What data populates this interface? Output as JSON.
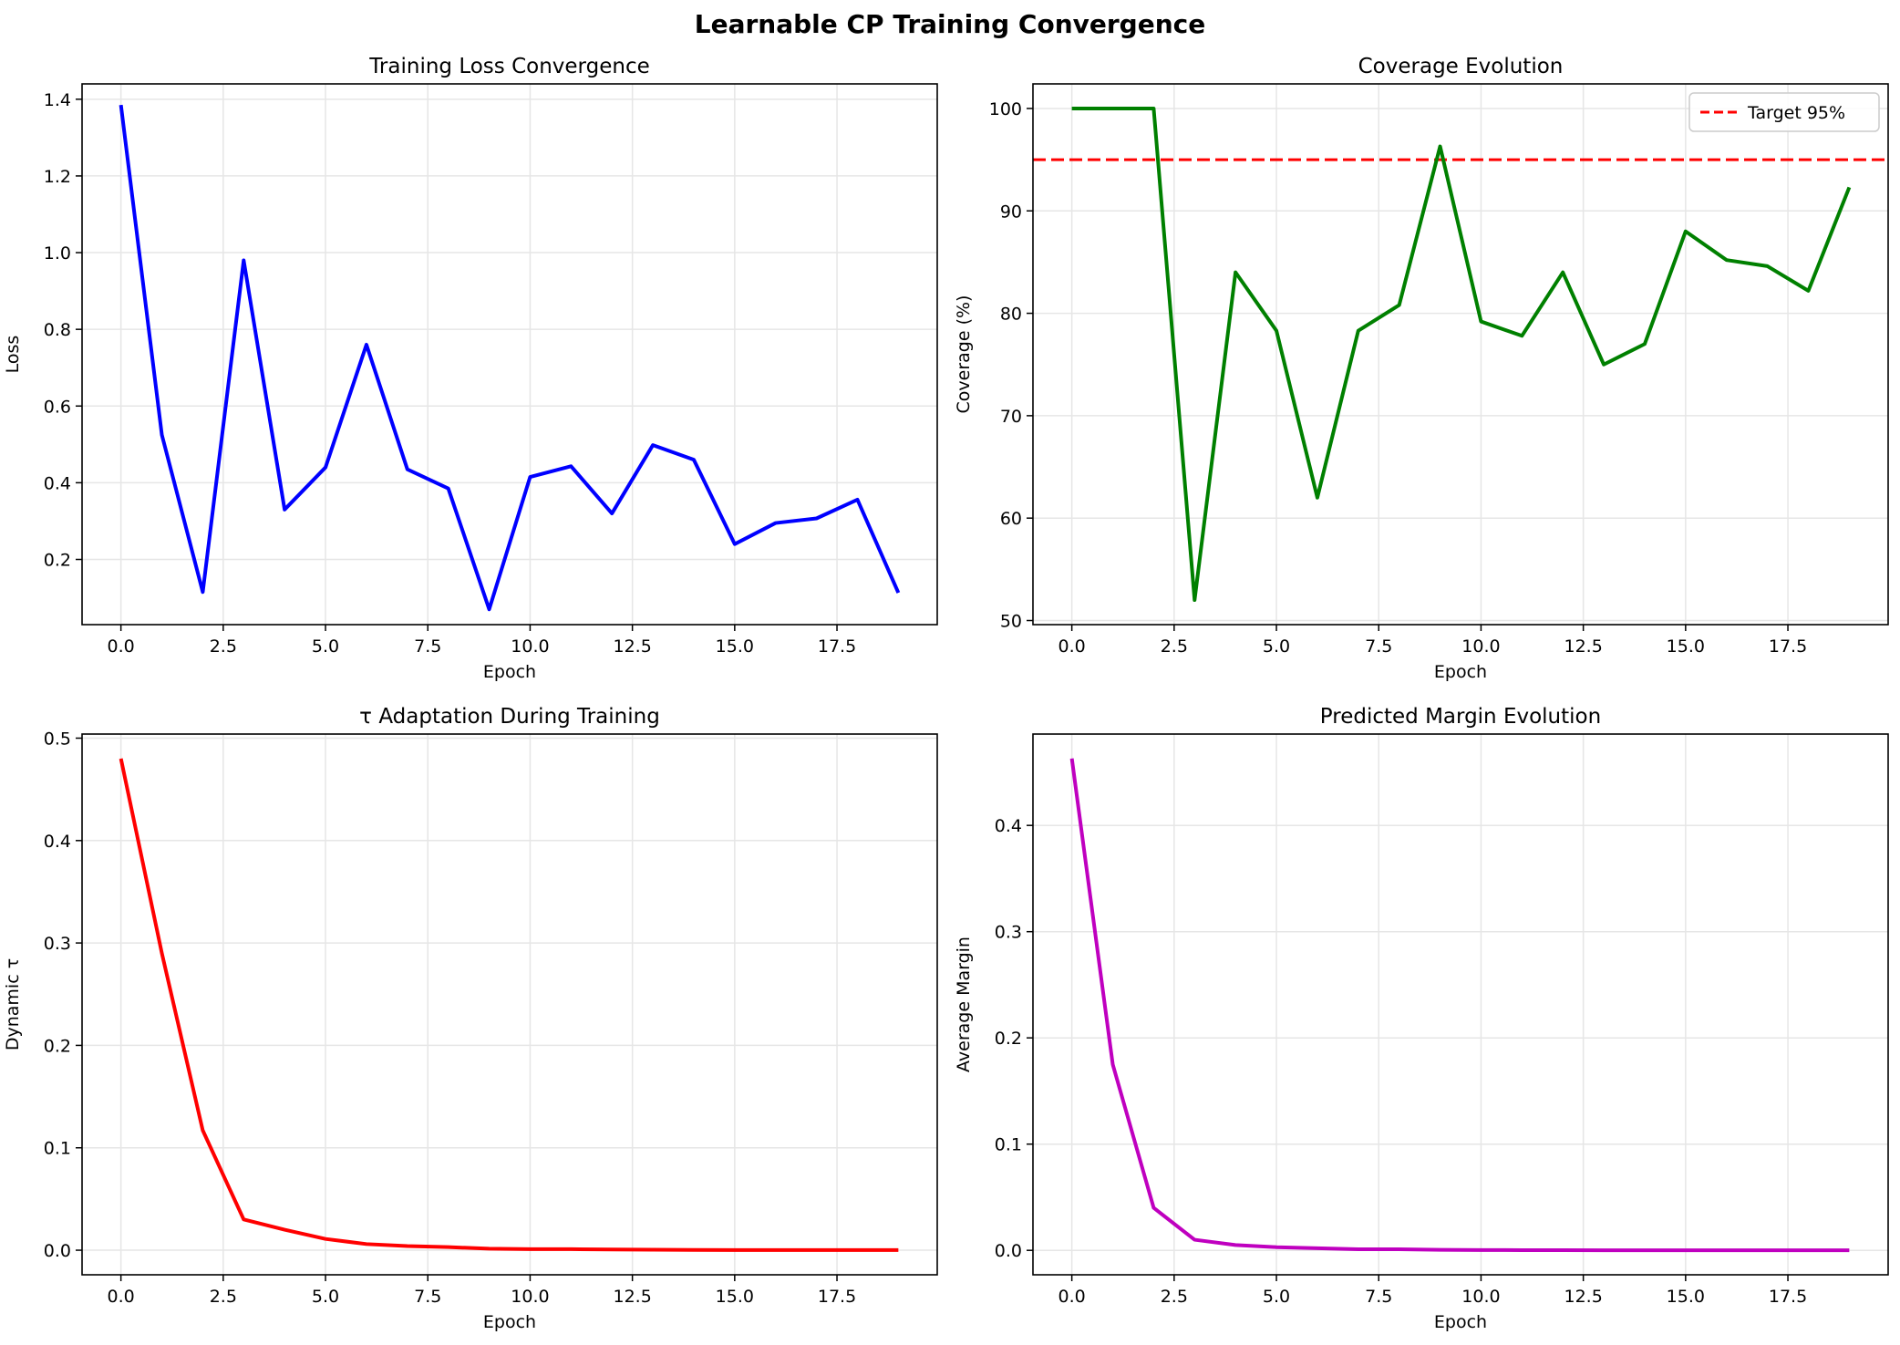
{
  "figure": {
    "suptitle": "Learnable CP Training Convergence"
  },
  "chart_data": [
    {
      "type": "line",
      "title": "Training Loss Convergence",
      "xlabel": "Epoch",
      "ylabel": "Loss",
      "xlim": [
        -0.95,
        19.95
      ],
      "ylim": [
        0.03,
        1.44
      ],
      "xticks": [
        0,
        2.5,
        5,
        7.5,
        10,
        12.5,
        15,
        17.5
      ],
      "xtick_labels": [
        "0.0",
        "2.5",
        "5.0",
        "7.5",
        "10.0",
        "12.5",
        "15.0",
        "17.5"
      ],
      "yticks": [
        0.2,
        0.4,
        0.6,
        0.8,
        1.0,
        1.2,
        1.4
      ],
      "ytick_labels": [
        "0.2",
        "0.4",
        "0.6",
        "0.8",
        "1.0",
        "1.2",
        "1.4"
      ],
      "grid": true,
      "series": [
        {
          "color": "#0000ff",
          "x": [
            0,
            1,
            2,
            3,
            4,
            5,
            6,
            7,
            8,
            9,
            10,
            11,
            12,
            13,
            14,
            15,
            16,
            17,
            18,
            19
          ],
          "y": [
            1.385,
            0.525,
            0.115,
            0.98,
            0.33,
            0.44,
            0.76,
            0.435,
            0.385,
            0.07,
            0.415,
            0.443,
            0.32,
            0.498,
            0.46,
            0.24,
            0.295,
            0.307,
            0.356,
            0.113
          ]
        }
      ]
    },
    {
      "type": "line",
      "title": "Coverage Evolution",
      "xlabel": "Epoch",
      "ylabel": "Coverage (%)",
      "xlim": [
        -0.95,
        19.95
      ],
      "ylim": [
        49.6,
        102.4
      ],
      "xticks": [
        0,
        2.5,
        5,
        7.5,
        10,
        12.5,
        15,
        17.5
      ],
      "xtick_labels": [
        "0.0",
        "2.5",
        "5.0",
        "7.5",
        "10.0",
        "12.5",
        "15.0",
        "17.5"
      ],
      "yticks": [
        50,
        60,
        70,
        80,
        90,
        100
      ],
      "ytick_labels": [
        "50",
        "60",
        "70",
        "80",
        "90",
        "100"
      ],
      "grid": true,
      "legend_position": "upper right",
      "series": [
        {
          "color": "#008000",
          "x": [
            0,
            1,
            2,
            3,
            4,
            5,
            6,
            7,
            8,
            9,
            10,
            11,
            12,
            13,
            14,
            15,
            16,
            17,
            18,
            19
          ],
          "y": [
            100,
            100,
            100,
            52,
            84,
            78.3,
            62,
            78.3,
            80.8,
            96.3,
            79.2,
            77.8,
            84,
            75,
            77,
            88,
            85.2,
            84.6,
            82.2,
            92.3
          ]
        }
      ],
      "hlines": [
        {
          "name": "Target 95%",
          "y": 95,
          "color": "#ff0000",
          "style": "dashed"
        }
      ]
    },
    {
      "type": "line",
      "title": "τ Adaptation During Training",
      "xlabel": "Epoch",
      "ylabel": "Dynamic τ",
      "xlim": [
        -0.95,
        19.95
      ],
      "ylim": [
        -0.024,
        0.504
      ],
      "xticks": [
        0,
        2.5,
        5,
        7.5,
        10,
        12.5,
        15,
        17.5
      ],
      "xtick_labels": [
        "0.0",
        "2.5",
        "5.0",
        "7.5",
        "10.0",
        "12.5",
        "15.0",
        "17.5"
      ],
      "yticks": [
        0.0,
        0.1,
        0.2,
        0.3,
        0.4,
        0.5
      ],
      "ytick_labels": [
        "0.0",
        "0.1",
        "0.2",
        "0.3",
        "0.4",
        "0.5"
      ],
      "grid": true,
      "series": [
        {
          "color": "#ff0000",
          "x": [
            0,
            1,
            2,
            3,
            4,
            5,
            6,
            7,
            8,
            9,
            10,
            11,
            12,
            13,
            14,
            15,
            16,
            17,
            18,
            19
          ],
          "y": [
            0.48,
            0.29,
            0.117,
            0.03,
            0.02,
            0.011,
            0.006,
            0.004,
            0.003,
            0.0015,
            0.001,
            0.001,
            0.0007,
            0.0005,
            0.0003,
            0.0002,
            0.0001,
            0.0001,
            0.0001,
            0.0001
          ]
        }
      ]
    },
    {
      "type": "line",
      "title": "Predicted Margin Evolution",
      "xlabel": "Epoch",
      "ylabel": "Average Margin",
      "xlim": [
        -0.95,
        19.95
      ],
      "ylim": [
        -0.023,
        0.486
      ],
      "xticks": [
        0,
        2.5,
        5,
        7.5,
        10,
        12.5,
        15,
        17.5
      ],
      "xtick_labels": [
        "0.0",
        "2.5",
        "5.0",
        "7.5",
        "10.0",
        "12.5",
        "15.0",
        "17.5"
      ],
      "yticks": [
        0.0,
        0.1,
        0.2,
        0.3,
        0.4
      ],
      "ytick_labels": [
        "0.0",
        "0.1",
        "0.2",
        "0.3",
        "0.4"
      ],
      "grid": true,
      "series": [
        {
          "color": "#bf00bf",
          "x": [
            0,
            1,
            2,
            3,
            4,
            5,
            6,
            7,
            8,
            9,
            10,
            11,
            12,
            13,
            14,
            15,
            16,
            17,
            18,
            19
          ],
          "y": [
            0.463,
            0.175,
            0.04,
            0.01,
            0.005,
            0.003,
            0.002,
            0.001,
            0.001,
            0.0005,
            0.0003,
            0.0002,
            0.0002,
            0.0001,
            0.0001,
            0.0001,
            0.0001,
            0.0001,
            0.0001,
            0.0001
          ]
        }
      ]
    }
  ]
}
